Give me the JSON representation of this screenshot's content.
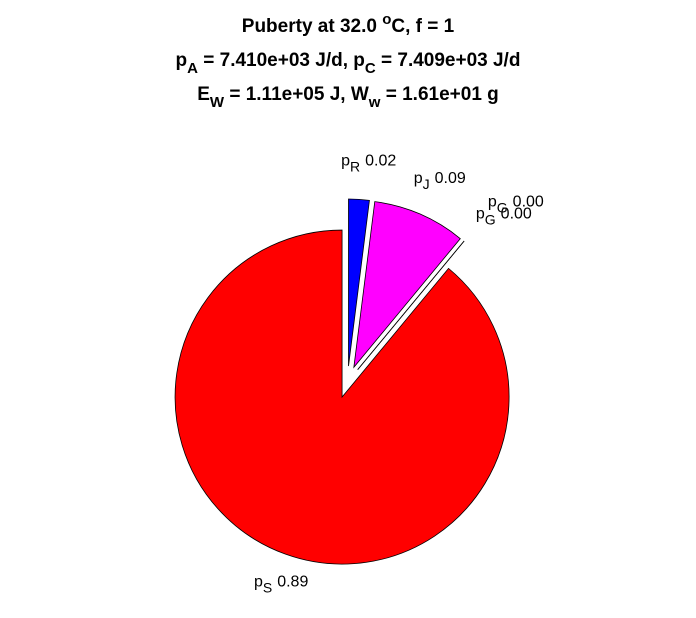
{
  "chart_data": {
    "type": "pie",
    "title_lines": [
      [
        {
          "text": "Puberty at 32.0 "
        },
        {
          "text": "o",
          "shift": "sup"
        },
        {
          "text": "C, f = 1"
        }
      ],
      [
        {
          "text": "p"
        },
        {
          "text": "A",
          "shift": "sub"
        },
        {
          "text": " = 7.410e+03 J/d,  p"
        },
        {
          "text": "C",
          "shift": "sub"
        },
        {
          "text": " = 7.409e+03 J/d"
        }
      ],
      [
        {
          "text": "E"
        },
        {
          "text": "W",
          "shift": "sub"
        },
        {
          "text": " = 1.11e+05 J, W"
        },
        {
          "text": "w",
          "shift": "sub"
        },
        {
          "text": " = 1.61e+01 g"
        }
      ]
    ],
    "categories": [
      {
        "symbol": "p",
        "subscript": "R"
      },
      {
        "symbol": "p",
        "subscript": "J"
      },
      {
        "symbol": "p",
        "subscript": "G"
      },
      {
        "symbol": "p",
        "subscript": "G"
      },
      {
        "symbol": "p",
        "subscript": "S"
      }
    ],
    "values": [
      0.02,
      0.09,
      0,
      0,
      0.89
    ],
    "value_labels": [
      "0.02",
      "0.09",
      "0.00",
      "0.00",
      "0.89"
    ],
    "colors": [
      "#0000ff",
      "#ff00ff",
      "#00ff00",
      "#00ffff",
      "#ff0000"
    ],
    "exploded": true
  }
}
